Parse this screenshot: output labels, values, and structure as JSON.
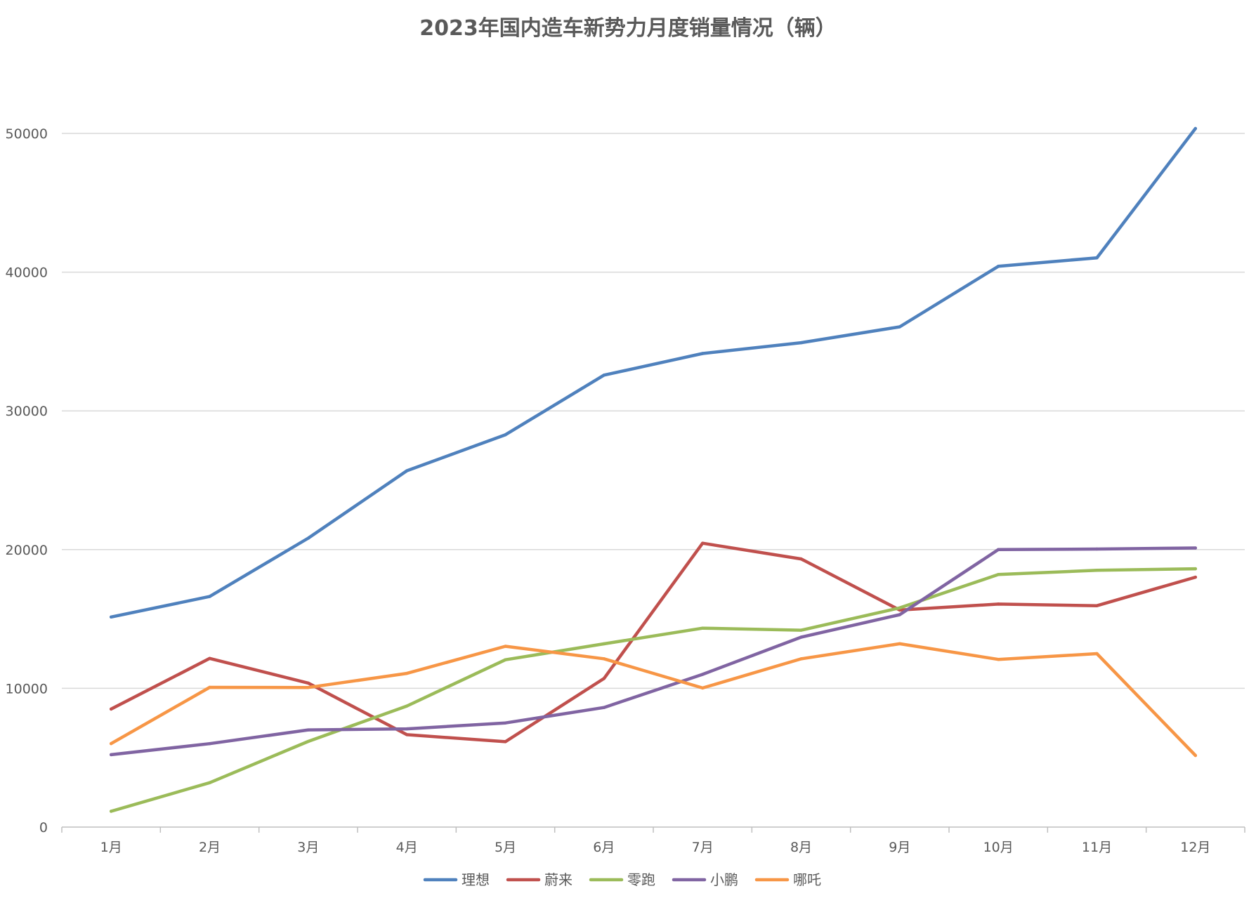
{
  "chart_data": {
    "type": "line",
    "title": "2023年国内造车新势力月度销量情况（辆）",
    "xlabel": "",
    "ylabel": "",
    "categories": [
      "1月",
      "2月",
      "3月",
      "4月",
      "5月",
      "6月",
      "7月",
      "8月",
      "9月",
      "10月",
      "11月",
      "12月"
    ],
    "ylim": [
      0,
      50000
    ],
    "yticks": [
      0,
      10000,
      20000,
      30000,
      40000,
      50000
    ],
    "ytick_labels": [
      "0",
      "10000",
      "20000",
      "30000",
      "40000",
      "50000"
    ],
    "grid": true,
    "legend_position": "bottom",
    "series": [
      {
        "name": "理想",
        "color": "#4f81bd",
        "values": [
          15141,
          16620,
          20823,
          25681,
          28277,
          32575,
          34134,
          34914,
          36060,
          40422,
          41030,
          50353
        ]
      },
      {
        "name": "蔚来",
        "color": "#c0504d",
        "values": [
          8506,
          12157,
          10378,
          6658,
          6155,
          10707,
          20462,
          19329,
          15641,
          16074,
          15959,
          18012
        ]
      },
      {
        "name": "零跑",
        "color": "#9bbb59",
        "values": [
          1139,
          3198,
          6172,
          8726,
          12058,
          13209,
          14335,
          14190,
          15800,
          18202,
          18508,
          18618
        ]
      },
      {
        "name": "小鹏",
        "color": "#8064a2",
        "values": [
          5218,
          6010,
          7002,
          7079,
          7506,
          8620,
          11008,
          13690,
          15310,
          20002,
          20041,
          20115
        ]
      },
      {
        "name": "哪吒",
        "color": "#f79646",
        "values": [
          6016,
          10073,
          10059,
          11080,
          13029,
          12132,
          10025,
          12127,
          13213,
          12086,
          12502,
          5161
        ]
      }
    ]
  }
}
